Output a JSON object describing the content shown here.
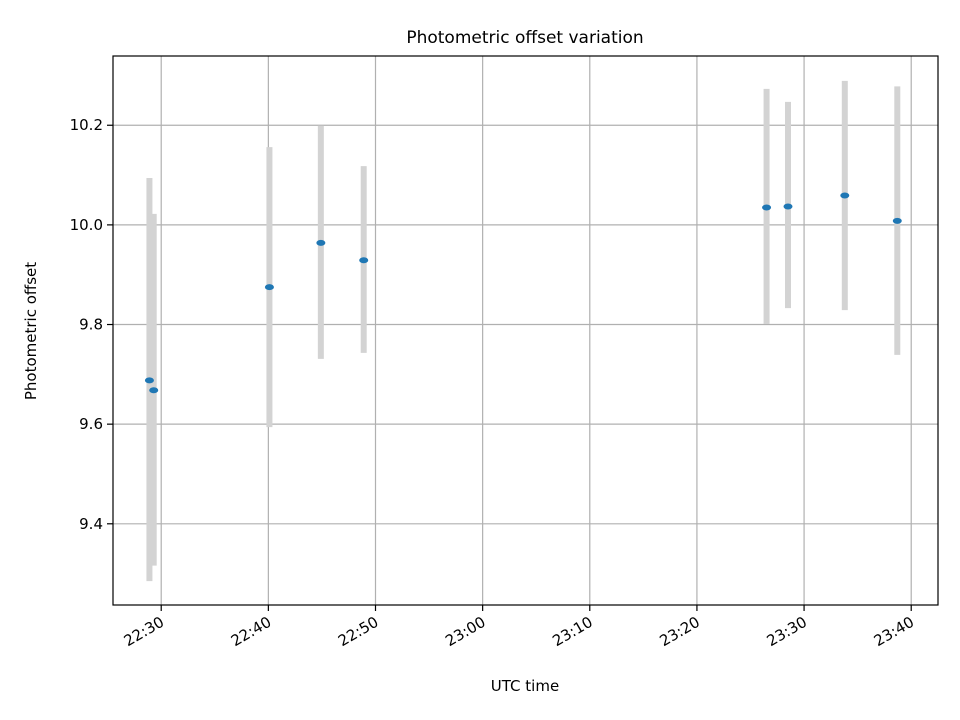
{
  "chart_data": {
    "type": "scatter",
    "title": "Photometric offset variation",
    "xlabel": "UTC time",
    "ylabel": "Photometric offset",
    "x_format": "HH:MM",
    "xlim": [
      "22:25:30",
      "23:42:30"
    ],
    "ylim": [
      9.237,
      10.339
    ],
    "x_ticks": [
      "22:30",
      "22:40",
      "22:50",
      "23:00",
      "23:10",
      "23:20",
      "23:30",
      "23:40"
    ],
    "y_ticks": [
      9.4,
      9.6,
      9.8,
      10.0,
      10.2
    ],
    "grid": true,
    "series": [
      {
        "marker_color": "#1f77b4",
        "errorbar_color": "#d3d3d3",
        "points": [
          {
            "x": "22:28:54",
            "y": 9.688,
            "err_low": 9.285,
            "err_high": 10.094
          },
          {
            "x": "22:29:18",
            "y": 9.668,
            "err_low": 9.316,
            "err_high": 10.022
          },
          {
            "x": "22:40:06",
            "y": 9.875,
            "err_low": 9.594,
            "err_high": 10.156
          },
          {
            "x": "22:44:54",
            "y": 9.964,
            "err_low": 9.731,
            "err_high": 10.199
          },
          {
            "x": "22:48:54",
            "y": 9.929,
            "err_low": 9.743,
            "err_high": 10.118
          },
          {
            "x": "23:26:30",
            "y": 10.035,
            "err_low": 9.801,
            "err_high": 10.273
          },
          {
            "x": "23:28:30",
            "y": 10.037,
            "err_low": 9.833,
            "err_high": 10.247
          },
          {
            "x": "23:33:48",
            "y": 10.059,
            "err_low": 9.829,
            "err_high": 10.289
          },
          {
            "x": "23:38:42",
            "y": 10.008,
            "err_low": 9.739,
            "err_high": 10.278
          }
        ]
      }
    ]
  }
}
